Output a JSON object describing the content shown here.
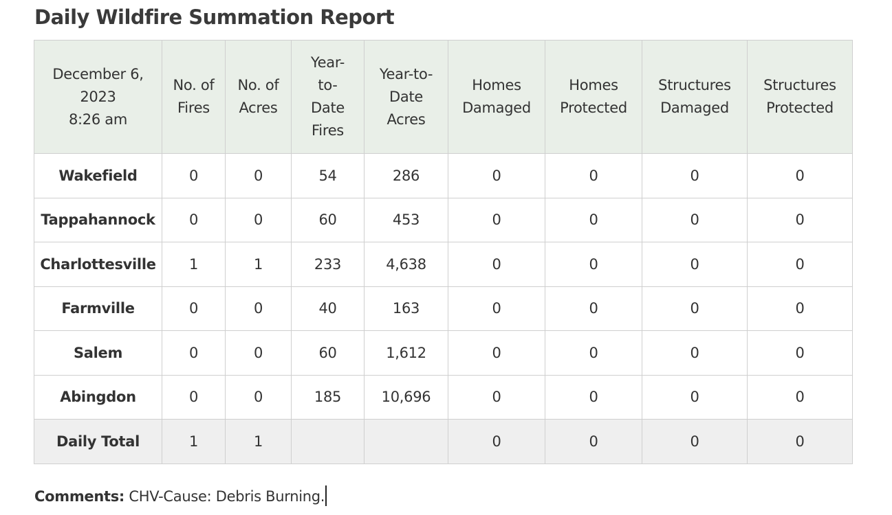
{
  "report": {
    "title": "Daily Wildfire Summation Report"
  },
  "table": {
    "header": {
      "date_lines": [
        "December 6,",
        "2023",
        "8:26 am"
      ],
      "columns": [
        {
          "lines": [
            "No. of",
            "Fires"
          ]
        },
        {
          "lines": [
            "No. of",
            "Acres"
          ]
        },
        {
          "lines": [
            "Year-",
            "to-",
            "Date",
            "Fires"
          ]
        },
        {
          "lines": [
            "Year-to-",
            "Date",
            "Acres"
          ]
        },
        {
          "lines": [
            "Homes",
            "Damaged"
          ]
        },
        {
          "lines": [
            "Homes",
            "Protected"
          ]
        },
        {
          "lines": [
            "Structures",
            "Damaged"
          ]
        },
        {
          "lines": [
            "Structures",
            "Protected"
          ]
        }
      ]
    },
    "rows": [
      {
        "station": "Wakefield",
        "values": [
          "0",
          "0",
          "54",
          "286",
          "0",
          "0",
          "0",
          "0"
        ]
      },
      {
        "station": "Tappahannock",
        "values": [
          "0",
          "0",
          "60",
          "453",
          "0",
          "0",
          "0",
          "0"
        ]
      },
      {
        "station": "Charlottesville",
        "values": [
          "1",
          "1",
          "233",
          "4,638",
          "0",
          "0",
          "0",
          "0"
        ]
      },
      {
        "station": "Farmville",
        "values": [
          "0",
          "0",
          "40",
          "163",
          "0",
          "0",
          "0",
          "0"
        ]
      },
      {
        "station": "Salem",
        "values": [
          "0",
          "0",
          "60",
          "1,612",
          "0",
          "0",
          "0",
          "0"
        ]
      },
      {
        "station": "Abingdon",
        "values": [
          "0",
          "0",
          "185",
          "10,696",
          "0",
          "0",
          "0",
          "0"
        ]
      }
    ],
    "total": {
      "label": "Daily Total",
      "values": [
        "1",
        "1",
        "",
        "",
        "0",
        "0",
        "0",
        "0"
      ]
    }
  },
  "comments": {
    "label": "Comments:",
    "text": " CHV-Cause: Debris Burning."
  },
  "colors": {
    "header_bg": "#e9efe8",
    "total_row_bg": "#efefef",
    "border": "#cfcfcf",
    "text": "#333333"
  }
}
